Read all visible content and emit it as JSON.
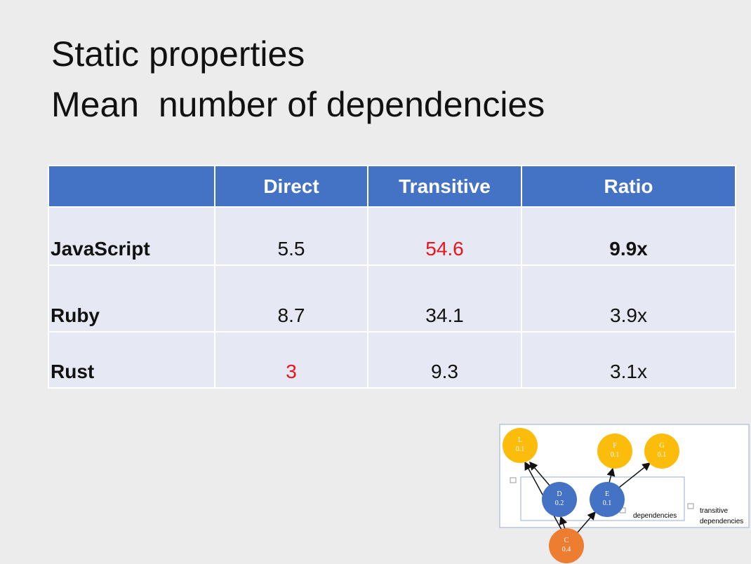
{
  "title": [
    "Static properties",
    "Mean  number of dependencies"
  ],
  "table": {
    "header": [
      "",
      "Direct",
      "Transitive",
      "Ratio"
    ],
    "rows": [
      [
        "JavaScript",
        "5.5",
        "54.6",
        "9.9x"
      ],
      [
        "Ruby",
        "8.7",
        "34.1",
        "3.9x"
      ],
      [
        "Rust",
        "3",
        "9.3",
        "3.1x"
      ]
    ]
  },
  "diagram": {
    "nodes": [
      {
        "label": "L",
        "value": 0.1
      },
      {
        "label": "F",
        "value": 0.1
      },
      {
        "label": "G",
        "value": 0.1
      },
      {
        "label": "D",
        "value": 0.2
      },
      {
        "label": "E",
        "value": 0.1
      },
      {
        "label": "C",
        "value": 0.4
      }
    ],
    "labels": [
      "dependencies",
      "transitive",
      "dependencies"
    ]
  }
}
